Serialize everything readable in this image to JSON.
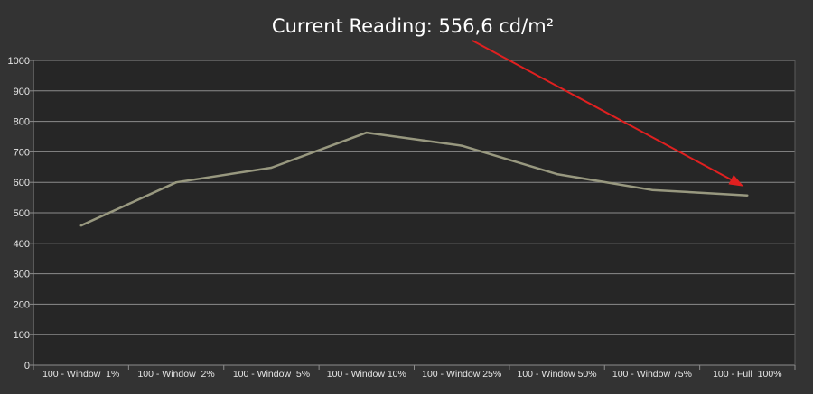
{
  "chart_data": {
    "type": "line",
    "title": "Current Reading: 556,6 cd/m²",
    "xlabel": "",
    "ylabel": "",
    "ylim": [
      0,
      1000
    ],
    "yticks": [
      "0",
      "100",
      "200",
      "300",
      "400",
      "500",
      "600",
      "700",
      "800",
      "900",
      "1000"
    ],
    "categories": [
      "100 - Window  1%",
      "100 - Window  2%",
      "100 - Window  5%",
      "100 - Window 10%",
      "100 - Window 25%",
      "100 - Window 50%",
      "100 - Window 75%",
      "100 - Full  100%"
    ],
    "series": [
      {
        "values": [
          458,
          600,
          648,
          763,
          720,
          627,
          575,
          557
        ]
      }
    ],
    "grid": true,
    "colors": {
      "background": "#333333",
      "plot_area": "#262626",
      "gridline": "#8c8c8c",
      "line": "#98987f",
      "arrow": "#e02020",
      "text": "#ffffff"
    },
    "annotation": {
      "type": "arrow",
      "from_category": "title",
      "to_category": "100 - Full  100%"
    }
  }
}
